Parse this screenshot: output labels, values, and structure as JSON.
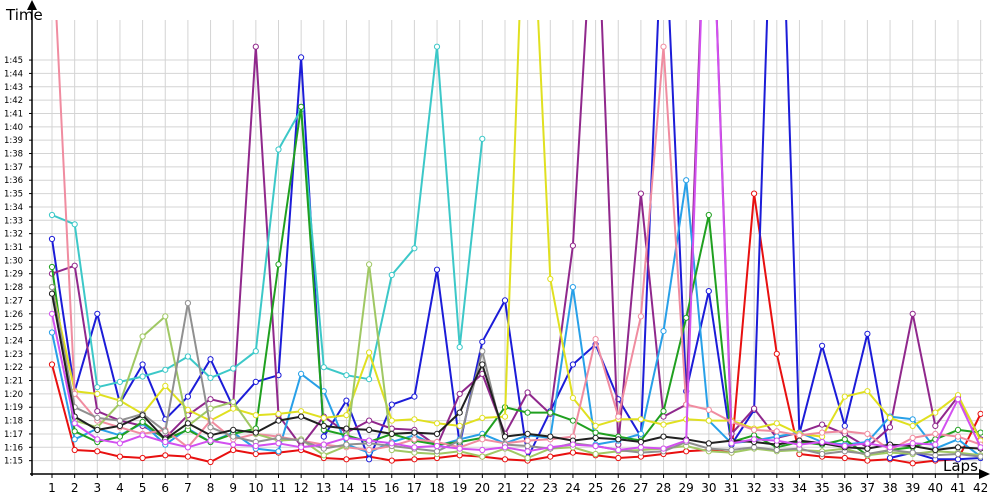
{
  "chart_data": {
    "type": "line",
    "xlabel": "Laps",
    "ylabel": "Time",
    "x": [
      1,
      2,
      3,
      4,
      5,
      6,
      7,
      8,
      9,
      10,
      11,
      12,
      13,
      14,
      15,
      16,
      17,
      18,
      19,
      20,
      21,
      22,
      23,
      24,
      25,
      26,
      27,
      28,
      29,
      30,
      31,
      32,
      33,
      34,
      35,
      36,
      37,
      38,
      39,
      40,
      41,
      42
    ],
    "x_tick_labels": [
      "1",
      "2",
      "3",
      "4",
      "5",
      "6",
      "7",
      "8",
      "9",
      "10",
      "11",
      "12",
      "13",
      "14",
      "15",
      "16",
      "17",
      "18",
      "19",
      "20",
      "21",
      "22",
      "23",
      "24",
      "25",
      "26",
      "27",
      "28",
      "29",
      "30",
      "31",
      "32",
      "33",
      "34",
      "35",
      "36",
      "37",
      "38",
      "39",
      "40",
      "41",
      "42"
    ],
    "y_unit": "seconds",
    "ylim": [
      74,
      108
    ],
    "y_ticks": [
      75,
      76,
      77,
      78,
      79,
      80,
      81,
      82,
      83,
      84,
      85,
      86,
      87,
      88,
      89,
      90,
      91,
      92,
      93,
      94,
      95,
      96,
      97,
      98,
      99,
      100,
      101,
      102,
      103,
      104,
      105
    ],
    "y_tick_labels": [
      "1:15",
      "1:16",
      "1:17",
      "1:18",
      "1:19",
      "1:20",
      "1:21",
      "1:22",
      "1:23",
      "1:24",
      "1:25",
      "1:26",
      "1:27",
      "1:28",
      "1:29",
      "1:30",
      "1:31",
      "1:32",
      "1:33",
      "1:34",
      "1:35",
      "1:36",
      "1:37",
      "1:38",
      "1:39",
      "1:40",
      "1:41",
      "1:42",
      "1:43",
      "1:44",
      "1:45"
    ],
    "grid": true,
    "legend": "none",
    "series": [
      {
        "color": "#e81010",
        "values": [
          82.2,
          75.8,
          75.7,
          75.3,
          75.2,
          75.4,
          75.3,
          74.9,
          75.8,
          75.5,
          75.6,
          75.8,
          75.2,
          75.1,
          75.3,
          75.0,
          75.1,
          75.2,
          75.4,
          75.3,
          75.1,
          75.0,
          75.3,
          75.6,
          75.4,
          75.2,
          75.3,
          75.5,
          75.7,
          75.8,
          75.6,
          95.0,
          83.0,
          75.5,
          75.3,
          75.2,
          75.0,
          75.1,
          74.8,
          75.0,
          75.1,
          78.5
        ]
      },
      {
        "color": "#1c1cd8",
        "values": [
          91.6,
          80.2,
          86.0,
          79.3,
          82.2,
          78.1,
          79.8,
          82.6,
          79.0,
          80.9,
          81.4,
          105.2,
          76.8,
          79.5,
          75.1,
          79.2,
          79.8,
          89.3,
          76.2,
          83.9,
          87.0,
          75.2,
          78.7,
          82.2,
          83.7,
          79.6,
          76.8,
          118.0,
          80.2,
          87.7,
          76.2,
          78.8,
          130.0,
          77.0,
          83.6,
          77.6,
          84.5,
          75.2,
          75.6,
          75.1,
          75.1,
          75.2
        ]
      },
      {
        "color": "#90288c",
        "values": [
          89.0,
          89.6,
          78.7,
          78.0,
          77.6,
          76.7,
          78.4,
          79.6,
          79.2,
          106.0,
          78.4,
          76.1,
          78.3,
          77.1,
          78.0,
          77.4,
          77.3,
          76.1,
          80.0,
          81.5,
          77.0,
          80.1,
          78.5,
          91.1,
          120.0,
          76.2,
          95.0,
          78.3,
          79.2,
          125.0,
          77.0,
          78.9,
          76.7,
          77.1,
          77.7,
          77.0,
          76.0,
          77.5,
          86.0,
          77.6,
          79.8,
          76.6
        ]
      },
      {
        "color": "#3cc8c8",
        "values": [
          93.4,
          92.7,
          80.5,
          80.9,
          81.3,
          81.8,
          82.8,
          81.2,
          81.9,
          83.2,
          98.3,
          101.3,
          82.0,
          81.4,
          81.1,
          88.9,
          90.9,
          106.0,
          83.5,
          99.1,
          null,
          null,
          null,
          null,
          null,
          null,
          null,
          null,
          null,
          null,
          null,
          null,
          null,
          null,
          null,
          null,
          null,
          null,
          null,
          null,
          null,
          null
        ]
      },
      {
        "color": "#28a0e8",
        "values": [
          84.6,
          76.6,
          77.4,
          76.9,
          77.8,
          76.2,
          77.4,
          76.4,
          77.1,
          75.9,
          75.7,
          81.5,
          80.2,
          76.2,
          75.6,
          76.4,
          76.9,
          76.1,
          76.6,
          77.0,
          76.3,
          76.9,
          76.7,
          88.0,
          76.2,
          76.5,
          77.0,
          84.7,
          96.0,
          78.0,
          76.3,
          76.5,
          76.8,
          77.1,
          76.4,
          76.2,
          76.4,
          78.3,
          78.1,
          75.9,
          76.6,
          75.3
        ]
      },
      {
        "color": "#20a020",
        "values": [
          89.5,
          77.2,
          76.4,
          76.8,
          77.9,
          76.6,
          77.3,
          76.4,
          77.0,
          77.4,
          89.7,
          101.5,
          77.3,
          76.9,
          76.4,
          77.0,
          76.5,
          76.2,
          76.4,
          76.7,
          79.0,
          78.6,
          78.6,
          78.0,
          77.1,
          76.8,
          76.5,
          78.7,
          85.7,
          93.4,
          76.4,
          76.9,
          76.0,
          76.4,
          76.2,
          76.6,
          75.4,
          75.8,
          76.0,
          76.6,
          77.3,
          77.1
        ]
      },
      {
        "color": "#e0e020",
        "values": [
          88.0,
          80.2,
          80.0,
          79.5,
          78.5,
          80.6,
          78.8,
          78.0,
          78.9,
          78.4,
          78.5,
          78.7,
          78.2,
          78.4,
          83.1,
          78.0,
          78.1,
          77.8,
          77.6,
          78.2,
          78.3,
          125.0,
          88.6,
          79.7,
          77.6,
          78.1,
          78.1,
          77.7,
          78.1,
          78.0,
          78.0,
          77.4,
          77.8,
          77.0,
          76.8,
          79.8,
          80.2,
          78.2,
          77.6,
          78.6,
          79.9,
          76.5
        ]
      },
      {
        "color": "#f08ca0",
        "values": [
          115.0,
          80.0,
          78.0,
          77.5,
          77.0,
          77.3,
          76.0,
          78.0,
          76.6,
          77.0,
          76.8,
          76.5,
          76.2,
          76.0,
          75.8,
          76.1,
          76.6,
          76.4,
          76.0,
          76.6,
          76.3,
          76.5,
          76.6,
          76.8,
          84.1,
          78.3,
          85.8,
          106.0,
          79.2,
          78.8,
          77.9,
          77.3,
          77.2,
          76.9,
          77.1,
          77.2,
          77.0,
          75.8,
          76.7,
          77.0,
          76.8,
          76.2
        ]
      },
      {
        "color": "#a0c864",
        "values": [
          88.0,
          78.0,
          77.5,
          79.3,
          84.3,
          85.8,
          77.6,
          78.9,
          79.4,
          77.0,
          76.5,
          76.6,
          75.4,
          76.1,
          89.7,
          75.8,
          75.6,
          75.5,
          75.7,
          75.3,
          75.9,
          75.2,
          75.9,
          76.0,
          75.5,
          75.7,
          75.8,
          75.9,
          76.1,
          75.7,
          75.6,
          75.9,
          75.7,
          75.8,
          75.7,
          75.9,
          75.4,
          75.6,
          75.5,
          75.7,
          75.6,
          75.4
        ]
      },
      {
        "color": "#909090",
        "values": [
          88.0,
          79.0,
          78.2,
          78.0,
          78.5,
          77.2,
          86.8,
          77.5,
          76.8,
          76.4,
          76.7,
          76.5,
          75.9,
          76.2,
          76.3,
          76.1,
          75.9,
          75.7,
          76.5,
          83.2,
          76.2,
          76.1,
          75.9,
          76.3,
          76.1,
          75.8,
          75.6,
          75.7,
          76.4,
          75.9,
          75.8,
          76.0,
          75.8,
          75.9,
          75.5,
          75.7,
          75.5,
          75.8,
          75.6,
          75.4,
          75.5,
          75.3
        ]
      },
      {
        "color": "#202020",
        "values": [
          87.5,
          78.3,
          77.3,
          77.6,
          78.4,
          76.6,
          77.8,
          76.9,
          77.3,
          77.1,
          78.0,
          78.3,
          77.6,
          77.4,
          77.3,
          77.0,
          77.1,
          77.0,
          78.6,
          82.2,
          76.8,
          77.0,
          76.8,
          76.5,
          76.7,
          76.6,
          76.4,
          76.8,
          76.6,
          76.3,
          76.5,
          76.4,
          76.2,
          76.5,
          76.3,
          76.0,
          75.9,
          76.2,
          76.1,
          75.8,
          76.0,
          75.9
        ]
      },
      {
        "color": "#d250f0",
        "values": [
          86.0,
          77.8,
          76.6,
          76.3,
          76.9,
          76.4,
          76.0,
          76.5,
          76.2,
          76.1,
          76.3,
          76.0,
          76.2,
          76.7,
          76.5,
          76.3,
          76.0,
          76.1,
          75.9,
          75.8,
          76.0,
          75.7,
          76.0,
          76.2,
          76.1,
          75.8,
          76.0,
          75.9,
          76.5,
          125.0,
          76.3,
          76.6,
          76.5,
          76.2,
          76.4,
          76.1,
          76.3,
          76.0,
          76.3,
          76.2,
          79.6,
          76.0
        ]
      }
    ]
  }
}
